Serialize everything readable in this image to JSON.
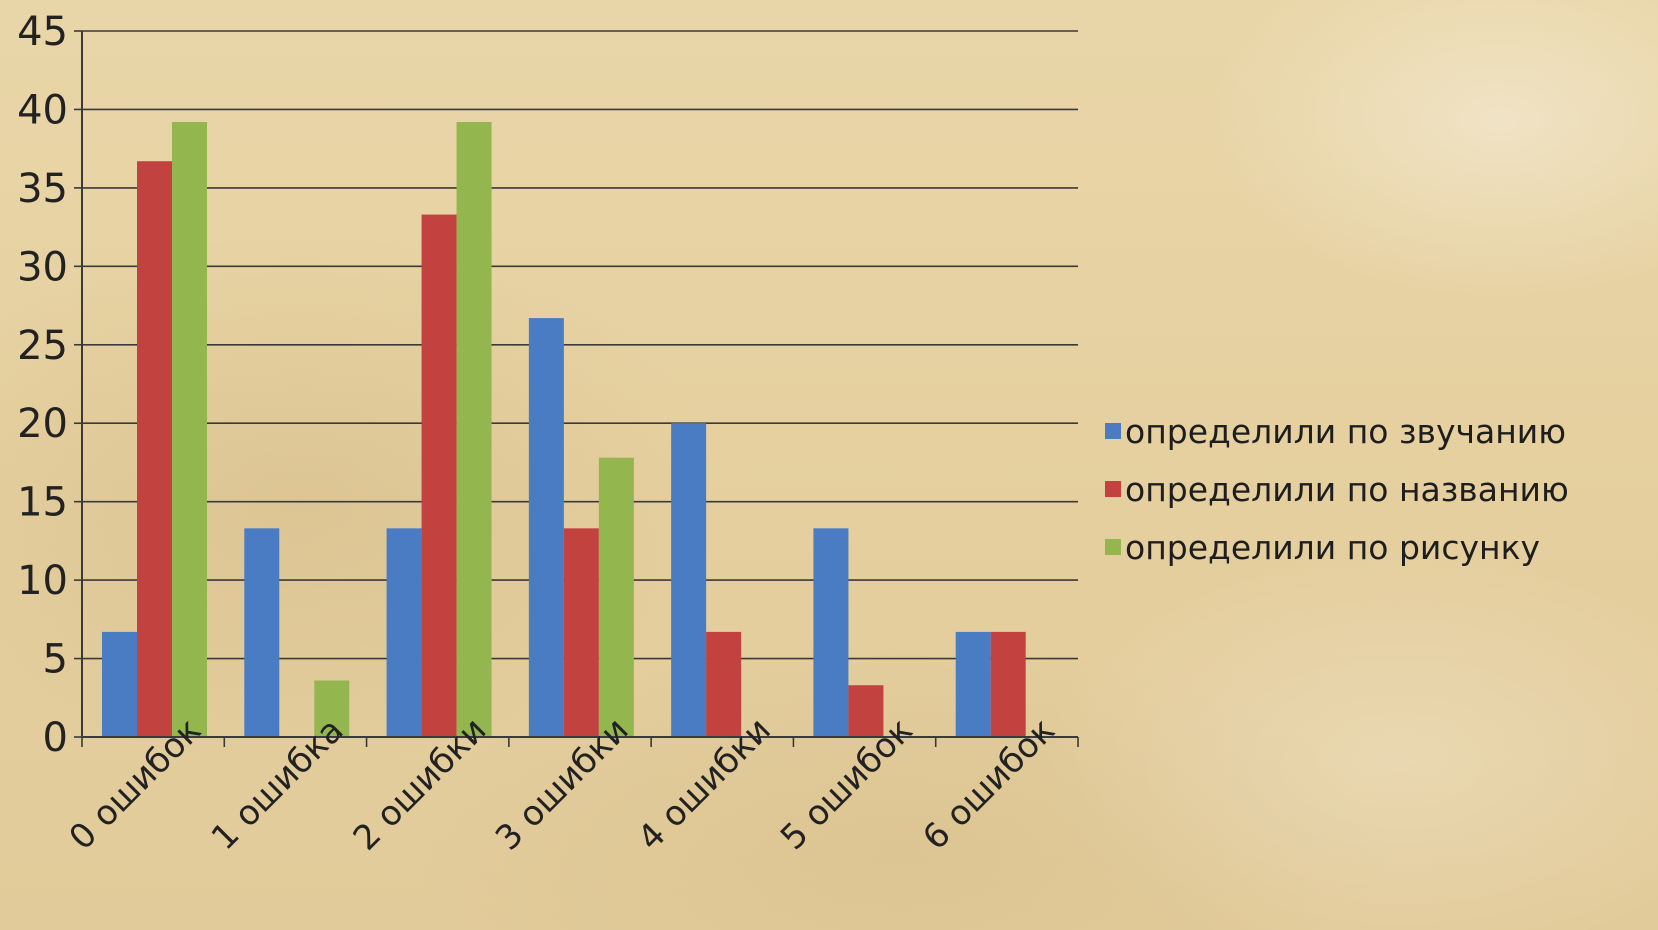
{
  "chart_data": {
    "type": "bar",
    "categories": [
      "0 ошибок",
      "1 ошибка",
      "2 ошибки",
      "3 ошибки",
      "4 ошибки",
      "5 ошибок",
      "6 ошибок"
    ],
    "series": [
      {
        "name": "определили по звучанию",
        "color": "#4a7cc4",
        "values": [
          6.7,
          13.3,
          13.3,
          26.7,
          20,
          13.3,
          6.7
        ]
      },
      {
        "name": "определили по названию",
        "color": "#c2423f",
        "values": [
          36.7,
          0,
          33.3,
          13.3,
          6.7,
          3.3,
          6.7
        ]
      },
      {
        "name": "определили по рисунку",
        "color": "#94b64f",
        "values": [
          39.2,
          3.6,
          39.2,
          17.8,
          0,
          0,
          0
        ]
      }
    ],
    "yticks": [
      "0",
      "5",
      "10",
      "15",
      "20",
      "25",
      "30",
      "35",
      "40",
      "45"
    ],
    "ylim": [
      0,
      45
    ],
    "grid": true,
    "legend_position": "right"
  }
}
